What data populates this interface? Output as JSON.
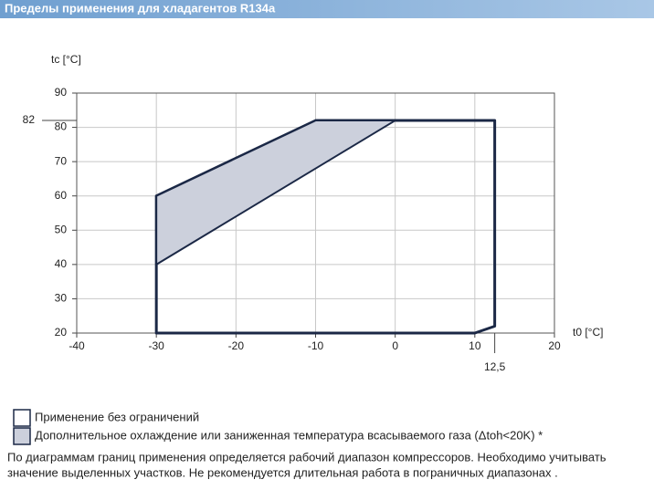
{
  "chart_data": {
    "type": "envelope",
    "title": "Пределы применения для хладагентов R134a",
    "x_label": "t0 [°C]",
    "y_label": "tc [°C]",
    "xlim": [
      -40,
      20
    ],
    "ylim": [
      20,
      90
    ],
    "xticks": [
      -40,
      -30,
      -20,
      -10,
      0,
      10,
      20
    ],
    "yticks": [
      20,
      30,
      40,
      50,
      60,
      70,
      80,
      90
    ],
    "extra_xticks": [
      {
        "value": 12.5,
        "label": "12,5"
      }
    ],
    "extra_yticks": [
      82
    ],
    "grid": true,
    "series": [
      {
        "name": "Применение без ограничений",
        "color": "#ffffff",
        "x": [
          -30,
          -30,
          -10,
          12.5,
          12.5,
          10
        ],
        "y": [
          20,
          60,
          82,
          82,
          22,
          20
        ]
      },
      {
        "name": "Дополнительное охлаждение или заниженная температура всасываемого газа (Δtoh<20K) *",
        "color": "#ccd0dc",
        "x": [
          -30,
          -10,
          0,
          -30
        ],
        "y": [
          60,
          82,
          82,
          40
        ]
      }
    ],
    "note": [
      "По диаграммам границ применения определяется рабочий диапазон компрессоров. Необходимо учитывать",
      "значение выделенных участков. Не рекомендуется длительная работа в пограничных диапазонах ."
    ]
  }
}
